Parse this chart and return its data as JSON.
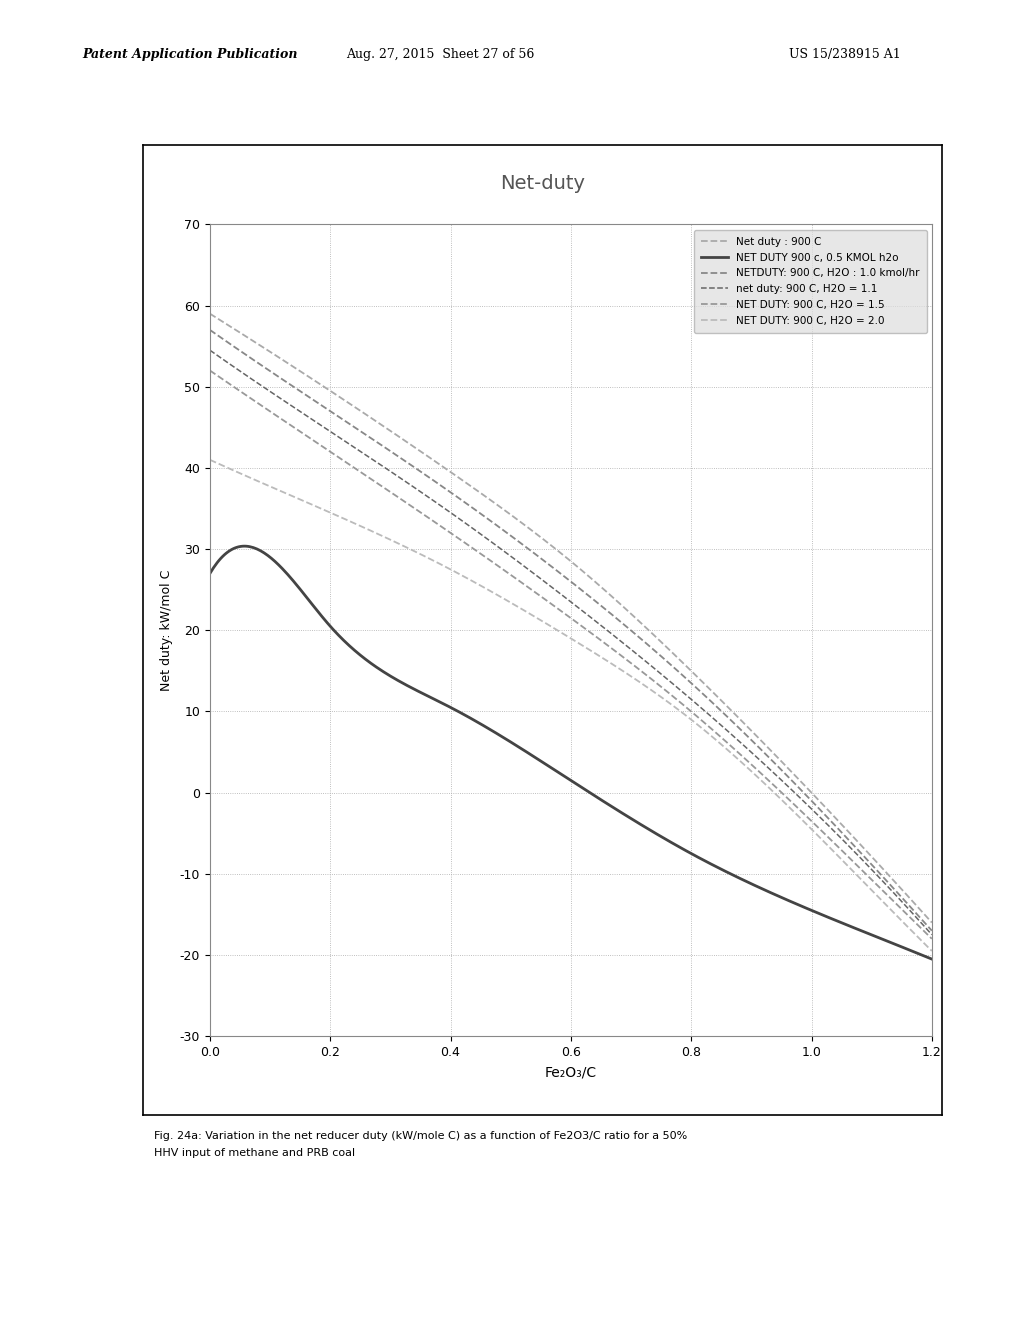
{
  "title": "Net-duty",
  "xlabel": "Fe₂O₃/C",
  "ylabel": "Net duty: kW/mol C",
  "xlim": [
    0.0,
    1.2
  ],
  "ylim": [
    -30,
    70
  ],
  "xticks": [
    0.0,
    0.2,
    0.4,
    0.6,
    0.8,
    1.0,
    1.2
  ],
  "xticklabels": [
    "0.0",
    "0.2",
    "0.4",
    "0.6",
    "0.8",
    "1.0",
    "1.2"
  ],
  "yticks": [
    -30,
    -20,
    -10,
    0,
    10,
    20,
    30,
    40,
    50,
    60,
    70
  ],
  "series": [
    {
      "label": "Net duty : 900 C",
      "color": "#aaaaaa",
      "linewidth": 1.3,
      "linestyle": "dashed",
      "x": [
        0.0,
        0.2,
        0.4,
        0.6,
        0.8,
        1.0,
        1.2
      ],
      "y": [
        59.0,
        49.5,
        39.5,
        28.5,
        15.0,
        0.0,
        -16.0
      ]
    },
    {
      "label": "NET DUTY 900 c, 0.5 KMOL h2o",
      "color": "#444444",
      "linewidth": 2.0,
      "linestyle": "solid",
      "x": [
        0.0,
        0.1,
        0.2,
        0.4,
        0.6,
        0.8,
        1.0,
        1.2
      ],
      "y": [
        27.0,
        29.0,
        20.5,
        10.5,
        1.5,
        -7.5,
        -14.5,
        -20.5
      ]
    },
    {
      "label": "NETDUTY: 900 C, H2O : 1.0 kmol/hr",
      "color": "#888888",
      "linewidth": 1.3,
      "linestyle": "dashed",
      "x": [
        0.0,
        0.2,
        0.4,
        0.6,
        0.8,
        1.0,
        1.2
      ],
      "y": [
        57.0,
        47.0,
        37.0,
        26.0,
        13.5,
        -1.0,
        -17.0
      ]
    },
    {
      "label": "net duty: 900 C, H2O = 1.1",
      "color": "#666666",
      "linewidth": 1.1,
      "linestyle": "dashed",
      "x": [
        0.0,
        0.2,
        0.4,
        0.6,
        0.8,
        1.0,
        1.2
      ],
      "y": [
        54.5,
        44.5,
        34.5,
        23.5,
        11.5,
        -2.0,
        -17.5
      ]
    },
    {
      "label": "NET DUTY: 900 C, H2O = 1.5",
      "color": "#999999",
      "linewidth": 1.3,
      "linestyle": "dashed",
      "x": [
        0.0,
        0.2,
        0.4,
        0.6,
        0.8,
        1.0,
        1.2
      ],
      "y": [
        52.0,
        42.0,
        32.0,
        21.5,
        10.0,
        -3.5,
        -18.0
      ]
    },
    {
      "label": "NET DUTY: 900 C, H2O = 2.0",
      "color": "#bbbbbb",
      "linewidth": 1.3,
      "linestyle": "dashed",
      "x": [
        0.0,
        0.2,
        0.4,
        0.6,
        0.8,
        1.0,
        1.2
      ],
      "y": [
        41.0,
        34.5,
        27.5,
        19.0,
        9.0,
        -4.5,
        -19.5
      ]
    }
  ],
  "caption_line1": "Fig. 24a: Variation in the net reducer duty (kW/mole C) as a function of Fe2O3/C ratio for a 50%",
  "caption_line2": "HHV input of methane and PRB coal",
  "header_left": "Patent Application Publication",
  "header_mid": "Aug. 27, 2015  Sheet 27 of 56",
  "header_right": "US 15/238915 A1"
}
